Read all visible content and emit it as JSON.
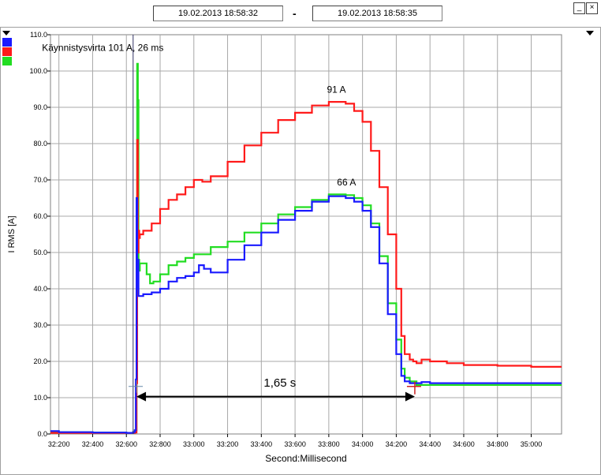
{
  "header": {
    "start_datetime": "19.02.2013     18:58:32",
    "separator": "-",
    "end_datetime": "19.02.2013     18:58:35",
    "minimize_glyph": "_",
    "close_glyph": "×"
  },
  "legend": {
    "swatches": [
      {
        "color": "#1a1aff"
      },
      {
        "color": "#ff1a1a"
      },
      {
        "color": "#22dd22"
      }
    ]
  },
  "chart_data": {
    "type": "line",
    "ylabel": "I RMS [A]",
    "xlabel": "Second:Millisecond",
    "ylim": [
      0,
      110
    ],
    "yticks": [
      0,
      10,
      20,
      30,
      40,
      50,
      60,
      70,
      80,
      90,
      100,
      110
    ],
    "ytick_labels": [
      "0.0",
      "10.0",
      "20.0",
      "30.0",
      "40.0",
      "50.0",
      "60.0",
      "70.0",
      "80.0",
      "90.0",
      "100.0",
      "110.0"
    ],
    "xlim": [
      32150,
      35180
    ],
    "xticks": [
      32200,
      32400,
      32600,
      32800,
      33000,
      33200,
      33400,
      33600,
      33800,
      34000,
      34200,
      34400,
      34600,
      34800,
      35000
    ],
    "xtick_labels": [
      "32:200",
      "32:400",
      "32:600",
      "32:800",
      "33:000",
      "33:200",
      "33:400",
      "33:600",
      "33:800",
      "34:000",
      "34:200",
      "34:400",
      "34:600",
      "34:800",
      "35:000"
    ],
    "grid": true,
    "series": [
      {
        "color": "#1a1aff",
        "x": [
          32150,
          32200,
          32300,
          32400,
          32500,
          32600,
          32640,
          32650,
          32656,
          32660,
          32664,
          32668,
          32672,
          32680,
          32700,
          32750,
          32800,
          32850,
          32900,
          32950,
          33000,
          33030,
          33060,
          33100,
          33200,
          33300,
          33400,
          33500,
          33600,
          33700,
          33800,
          33850,
          33900,
          33950,
          34000,
          34050,
          34100,
          34150,
          34200,
          34230,
          34250,
          34280,
          34320,
          34350,
          34400,
          34500,
          34600,
          34700,
          34800,
          34900,
          35000,
          35100,
          35180
        ],
        "y": [
          0.8,
          0.5,
          0.5,
          0.4,
          0.4,
          0.3,
          0.5,
          1.0,
          15,
          65,
          40,
          48,
          38,
          38,
          38.5,
          39,
          40,
          42,
          43,
          43.5,
          44.5,
          46.5,
          45.5,
          44.5,
          48,
          52,
          55.5,
          59,
          61.5,
          64,
          65.5,
          65.5,
          65,
          64,
          61.5,
          57,
          47,
          33,
          22,
          16,
          14.5,
          14,
          14,
          14.3,
          14,
          14,
          14,
          14,
          14,
          14,
          14,
          14,
          14
        ]
      },
      {
        "color": "#ff1a1a",
        "x": [
          32150,
          32200,
          32300,
          32400,
          32500,
          32600,
          32640,
          32650,
          32660,
          32664,
          32668,
          32672,
          32676,
          32680,
          32700,
          32750,
          32800,
          32850,
          32900,
          32950,
          33000,
          33050,
          33100,
          33200,
          33300,
          33400,
          33500,
          33600,
          33700,
          33800,
          33850,
          33900,
          33950,
          34000,
          34050,
          34100,
          34150,
          34200,
          34230,
          34250,
          34280,
          34300,
          34320,
          34350,
          34400,
          34500,
          34600,
          34700,
          34800,
          34900,
          35000,
          35100,
          35180
        ],
        "y": [
          0.3,
          0.3,
          0.3,
          0.3,
          0.3,
          0.3,
          0.3,
          0.4,
          14,
          81,
          50,
          56,
          54,
          55,
          56,
          58,
          62,
          64.5,
          66,
          68,
          70,
          69.5,
          71,
          75,
          79.5,
          83,
          86.5,
          88.5,
          90.5,
          91.5,
          91.5,
          91,
          89,
          86,
          78,
          68,
          55,
          40,
          27,
          22,
          20.5,
          20,
          19.5,
          20.5,
          20,
          19.5,
          19,
          19,
          18.8,
          18.8,
          18.5,
          18.5,
          18.5
        ]
      },
      {
        "color": "#22dd22",
        "x": [
          32150,
          32200,
          32300,
          32400,
          32500,
          32600,
          32640,
          32650,
          32660,
          32664,
          32668,
          32672,
          32676,
          32680,
          32700,
          32720,
          32740,
          32760,
          32800,
          32850,
          32900,
          32950,
          33000,
          33100,
          33200,
          33300,
          33400,
          33500,
          33600,
          33700,
          33800,
          33850,
          33900,
          33950,
          34000,
          34050,
          34100,
          34150,
          34200,
          34230,
          34250,
          34280,
          34320,
          34350,
          34400,
          34500,
          34600,
          34700,
          34800,
          34900,
          35000,
          35100,
          35180
        ],
        "y": [
          0.5,
          0.5,
          0.5,
          0.4,
          0.4,
          0.3,
          0.5,
          1.0,
          40,
          102,
          92,
          48,
          45,
          47,
          47,
          44,
          41.5,
          42,
          44,
          46.5,
          47.5,
          48.5,
          49.5,
          51.5,
          53,
          55.5,
          58,
          60.5,
          62.5,
          64.5,
          66,
          66,
          65.8,
          65,
          63,
          58,
          49,
          36,
          26,
          18,
          15.5,
          14.5,
          13.5,
          13.5,
          13.5,
          13.5,
          13.5,
          13.5,
          13.5,
          13.5,
          13.5,
          13.5,
          13.5
        ]
      }
    ],
    "annotations": [
      {
        "text": "Käynnistysvirta 101 A, 26 ms",
        "x": 32460,
        "y": 105.5
      },
      {
        "text": "91 A",
        "x": 33845,
        "y": 94
      },
      {
        "text": "66 A",
        "x": 33905,
        "y": 68.5
      },
      {
        "text": "1,65 s",
        "x": 33510,
        "y": 13
      }
    ],
    "interval": {
      "x_start": 32660,
      "x_end": 34310,
      "y": 10.3
    },
    "vertical_marker_x": 32640
  }
}
